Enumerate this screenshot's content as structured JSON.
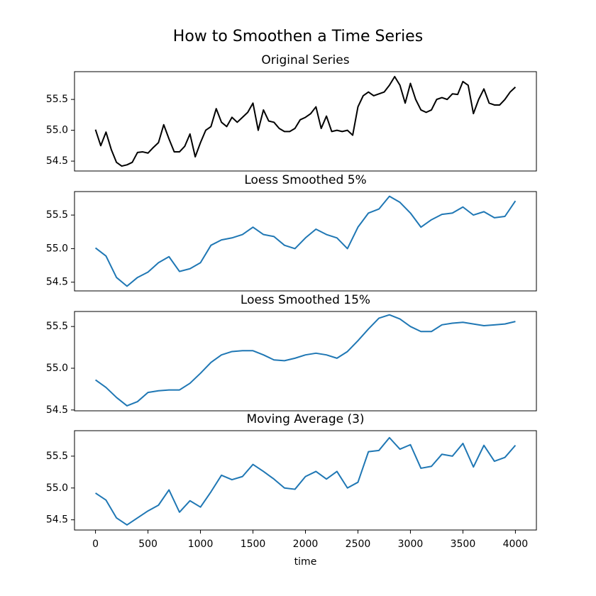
{
  "title": "How to Smoothen a Time Series",
  "chart_data": [
    {
      "type": "line",
      "title": "Original Series",
      "x": [
        0,
        50,
        100,
        150,
        200,
        250,
        300,
        350,
        400,
        450,
        500,
        550,
        600,
        650,
        700,
        750,
        800,
        850,
        900,
        950,
        1000,
        1050,
        1100,
        1150,
        1200,
        1250,
        1300,
        1350,
        1400,
        1450,
        1500,
        1550,
        1600,
        1650,
        1700,
        1750,
        1800,
        1850,
        1900,
        1950,
        2000,
        2050,
        2100,
        2150,
        2200,
        2250,
        2300,
        2350,
        2400,
        2450,
        2500,
        2550,
        2600,
        2650,
        2700,
        2750,
        2800,
        2850,
        2900,
        2950,
        3000,
        3050,
        3100,
        3150,
        3200,
        3250,
        3300,
        3350,
        3400,
        3450,
        3500,
        3550,
        3600,
        3650,
        3700,
        3750,
        3800,
        3850,
        3900,
        3950,
        4000
      ],
      "series": [
        {
          "color": "#000000",
          "values": [
            55.01,
            54.75,
            54.97,
            54.69,
            54.48,
            54.42,
            54.44,
            54.48,
            54.64,
            54.65,
            54.63,
            54.72,
            54.8,
            55.09,
            54.86,
            54.65,
            54.65,
            54.74,
            54.94,
            54.57,
            54.8,
            55.0,
            55.06,
            55.35,
            55.13,
            55.06,
            55.21,
            55.13,
            55.21,
            55.29,
            55.44,
            55.0,
            55.33,
            55.15,
            55.13,
            55.03,
            54.98,
            54.98,
            55.03,
            55.17,
            55.21,
            55.27,
            55.38,
            55.03,
            55.23,
            54.98,
            55.0,
            54.98,
            55.0,
            54.92,
            55.38,
            55.56,
            55.62,
            55.56,
            55.59,
            55.62,
            55.73,
            55.87,
            55.73,
            55.44,
            55.76,
            55.5,
            55.33,
            55.29,
            55.33,
            55.5,
            55.53,
            55.5,
            55.59,
            55.58,
            55.79,
            55.73,
            55.27,
            55.5,
            55.67,
            55.44,
            55.41,
            55.41,
            55.5,
            55.62,
            55.7
          ]
        }
      ],
      "xlim": [
        -200,
        4200
      ],
      "ylim": [
        54.34,
        55.95
      ],
      "yticks": [
        54.5,
        {
          "value": 55.0,
          "label": "55.0"
        },
        55.5
      ]
    },
    {
      "type": "line",
      "title": "Loess Smoothed 5%",
      "x": [
        0,
        100,
        200,
        300,
        400,
        500,
        600,
        700,
        800,
        900,
        1000,
        1100,
        1200,
        1300,
        1400,
        1500,
        1600,
        1700,
        1800,
        1900,
        2000,
        2100,
        2200,
        2300,
        2400,
        2500,
        2600,
        2700,
        2800,
        2900,
        3000,
        3100,
        3200,
        3300,
        3400,
        3500,
        3600,
        3700,
        3800,
        3900,
        4000
      ],
      "series": [
        {
          "color": "#1f77b4",
          "values": [
            55.01,
            54.89,
            54.57,
            54.44,
            54.57,
            54.65,
            54.79,
            54.88,
            54.66,
            54.7,
            54.79,
            55.05,
            55.13,
            55.16,
            55.21,
            55.32,
            55.21,
            55.18,
            55.05,
            55.0,
            55.16,
            55.29,
            55.21,
            55.16,
            55.0,
            55.32,
            55.53,
            55.59,
            55.78,
            55.69,
            55.53,
            55.32,
            55.43,
            55.51,
            55.53,
            55.62,
            55.5,
            55.55,
            55.46,
            55.48,
            55.71
          ]
        }
      ],
      "xlim": [
        -200,
        4200
      ],
      "ylim": [
        54.37,
        55.85
      ],
      "yticks": [
        54.5,
        {
          "value": 55.0,
          "label": "55.0"
        },
        55.5
      ]
    },
    {
      "type": "line",
      "title": "Loess Smoothed 15%",
      "x": [
        0,
        100,
        200,
        300,
        400,
        500,
        600,
        700,
        800,
        900,
        1000,
        1100,
        1200,
        1300,
        1400,
        1500,
        1600,
        1700,
        1800,
        1900,
        2000,
        2100,
        2200,
        2300,
        2400,
        2500,
        2600,
        2700,
        2800,
        2900,
        3000,
        3100,
        3200,
        3300,
        3400,
        3500,
        3600,
        3700,
        3800,
        3900,
        4000
      ],
      "series": [
        {
          "color": "#1f77b4",
          "values": [
            54.86,
            54.77,
            54.65,
            54.55,
            54.6,
            54.71,
            54.73,
            54.74,
            54.74,
            54.82,
            54.94,
            55.07,
            55.16,
            55.2,
            55.21,
            55.21,
            55.16,
            55.1,
            55.09,
            55.12,
            55.16,
            55.18,
            55.16,
            55.12,
            55.2,
            55.33,
            55.47,
            55.6,
            55.64,
            55.59,
            55.5,
            55.44,
            55.44,
            55.52,
            55.54,
            55.55,
            55.53,
            55.51,
            55.52,
            55.53,
            55.56
          ]
        }
      ],
      "xlim": [
        -200,
        4200
      ],
      "ylim": [
        54.49,
        55.68
      ],
      "yticks": [
        54.5,
        {
          "value": 55.0,
          "label": "55.0"
        },
        55.5
      ]
    },
    {
      "type": "line",
      "title": "Moving Average (3)",
      "xlabel": "time",
      "x": [
        0,
        100,
        200,
        300,
        400,
        500,
        600,
        700,
        800,
        900,
        1000,
        1100,
        1200,
        1300,
        1400,
        1500,
        1600,
        1700,
        1800,
        1900,
        2000,
        2100,
        2200,
        2300,
        2400,
        2500,
        2600,
        2700,
        2800,
        2900,
        3000,
        3100,
        3200,
        3300,
        3400,
        3500,
        3600,
        3700,
        3800,
        3900,
        4000
      ],
      "series": [
        {
          "color": "#1f77b4",
          "values": [
            54.92,
            54.81,
            54.53,
            54.42,
            54.53,
            54.64,
            54.73,
            54.97,
            54.62,
            54.8,
            54.7,
            54.94,
            55.2,
            55.13,
            55.18,
            55.37,
            55.26,
            55.14,
            55.0,
            54.98,
            55.18,
            55.26,
            55.14,
            55.26,
            55.0,
            55.09,
            55.57,
            55.59,
            55.79,
            55.61,
            55.68,
            55.31,
            55.34,
            55.53,
            55.5,
            55.7,
            55.33,
            55.67,
            55.42,
            55.48,
            55.67
          ]
        }
      ],
      "xlim": [
        -200,
        4200
      ],
      "ylim": [
        54.34,
        55.9
      ],
      "yticks": [
        54.5,
        {
          "value": 55.0,
          "label": "55.0"
        },
        55.5
      ],
      "xticks": [
        0,
        500,
        1000,
        1500,
        2000,
        2500,
        3000,
        3500,
        4000
      ]
    }
  ]
}
